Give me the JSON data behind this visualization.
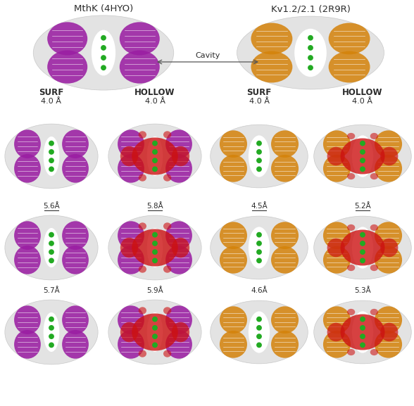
{
  "title_left": "MthK (4HYO)",
  "title_right": "Kv1.2/2.1 (2R9R)",
  "cavity_label": "Cavity",
  "col_labels": [
    "SURF",
    "HOLLOW",
    "SURF",
    "HOLLOW"
  ],
  "row0_labels": [
    "4.0 Å",
    "4.0 Å",
    "4.0 Å",
    "4.0 Å"
  ],
  "row1_labels": [
    "5.6Å",
    "5.8Å",
    "4.5Å",
    "5.2Å"
  ],
  "row2_labels": [
    "5.7Å",
    "5.9Å",
    "4.6Å",
    "5.3Å"
  ],
  "row1_underline": [
    true,
    true,
    true,
    true
  ],
  "row2_underline": [
    false,
    false,
    false,
    false
  ],
  "bg_color": "#ffffff",
  "text_color": "#2c2c2c",
  "purple_color": "#9b1fa3",
  "orange_color": "#d4820a",
  "red_color": "#cc1111",
  "green_color": "#22aa22",
  "gray_surface": "#cccccc",
  "gray_edge": "#aaaaaa",
  "figure_width": 5.88,
  "figure_height": 5.77
}
